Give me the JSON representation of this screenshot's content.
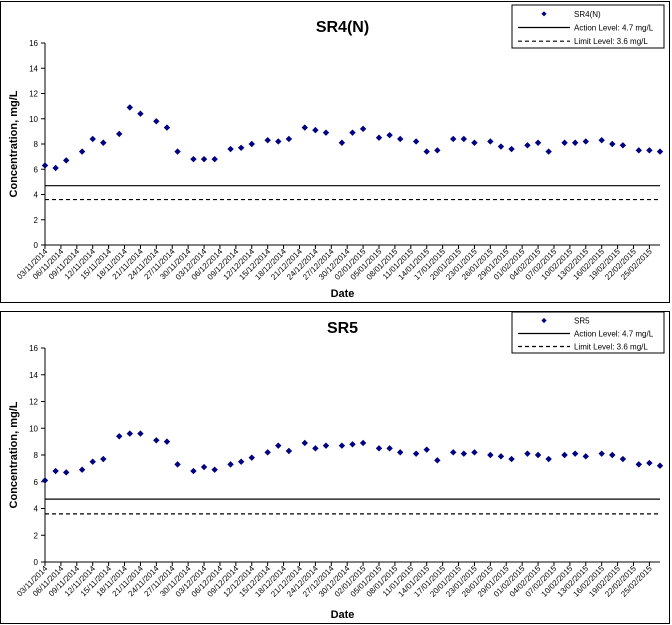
{
  "chart_data": [
    {
      "type": "scatter",
      "title": "SR4(N)",
      "xlabel": "Date",
      "ylabel": "Concentration, mg/L",
      "ylim": [
        0,
        16
      ],
      "yticks": [
        0,
        2,
        4,
        6,
        8,
        10,
        12,
        14,
        16
      ],
      "xlim": [
        "03/11/2014",
        "27/02/2015"
      ],
      "xticks": [
        "03/11/2014",
        "06/11/2014",
        "09/11/2014",
        "12/11/2014",
        "15/11/2014",
        "18/11/2014",
        "21/11/2014",
        "24/11/2014",
        "27/11/2014",
        "30/11/2014",
        "03/12/2014",
        "06/12/2014",
        "09/12/2014",
        "12/12/2014",
        "15/12/2014",
        "18/12/2014",
        "21/12/2014",
        "24/12/2014",
        "27/12/2014",
        "30/12/2014",
        "02/01/2015",
        "05/01/2015",
        "08/01/2015",
        "11/01/2015",
        "14/01/2015",
        "17/01/2015",
        "20/01/2015",
        "23/01/2015",
        "26/01/2015",
        "29/01/2015",
        "01/02/2015",
        "04/02/2015",
        "07/02/2015",
        "10/02/2015",
        "13/02/2015",
        "16/02/2015",
        "19/02/2015",
        "22/02/2015",
        "25/02/2015"
      ],
      "grid": false,
      "legend_position": "top-right",
      "series": [
        {
          "name": "SR4(N)",
          "kind": "points",
          "color": "#000080",
          "points": [
            {
              "x": "03/11/2014",
              "y": 6.3
            },
            {
              "x": "05/11/2014",
              "y": 6.1
            },
            {
              "x": "07/11/2014",
              "y": 6.7
            },
            {
              "x": "10/11/2014",
              "y": 7.4
            },
            {
              "x": "12/11/2014",
              "y": 8.4
            },
            {
              "x": "14/11/2014",
              "y": 8.1
            },
            {
              "x": "17/11/2014",
              "y": 8.8
            },
            {
              "x": "19/11/2014",
              "y": 10.9
            },
            {
              "x": "21/11/2014",
              "y": 10.4
            },
            {
              "x": "24/11/2014",
              "y": 9.8
            },
            {
              "x": "26/11/2014",
              "y": 9.3
            },
            {
              "x": "28/11/2014",
              "y": 7.4
            },
            {
              "x": "01/12/2014",
              "y": 6.8
            },
            {
              "x": "03/12/2014",
              "y": 6.8
            },
            {
              "x": "05/12/2014",
              "y": 6.8
            },
            {
              "x": "08/12/2014",
              "y": 7.6
            },
            {
              "x": "10/12/2014",
              "y": 7.7
            },
            {
              "x": "12/12/2014",
              "y": 8.0
            },
            {
              "x": "15/12/2014",
              "y": 8.3
            },
            {
              "x": "17/12/2014",
              "y": 8.2
            },
            {
              "x": "19/12/2014",
              "y": 8.4
            },
            {
              "x": "22/12/2014",
              "y": 9.3
            },
            {
              "x": "24/12/2014",
              "y": 9.1
            },
            {
              "x": "26/12/2014",
              "y": 8.9
            },
            {
              "x": "29/12/2014",
              "y": 8.1
            },
            {
              "x": "31/12/2014",
              "y": 8.9
            },
            {
              "x": "02/01/2015",
              "y": 9.2
            },
            {
              "x": "05/01/2015",
              "y": 8.5
            },
            {
              "x": "07/01/2015",
              "y": 8.7
            },
            {
              "x": "09/01/2015",
              "y": 8.4
            },
            {
              "x": "12/01/2015",
              "y": 8.2
            },
            {
              "x": "14/01/2015",
              "y": 7.4
            },
            {
              "x": "16/01/2015",
              "y": 7.5
            },
            {
              "x": "19/01/2015",
              "y": 8.4
            },
            {
              "x": "21/01/2015",
              "y": 8.4
            },
            {
              "x": "23/01/2015",
              "y": 8.1
            },
            {
              "x": "26/01/2015",
              "y": 8.2
            },
            {
              "x": "28/01/2015",
              "y": 7.8
            },
            {
              "x": "30/01/2015",
              "y": 7.6
            },
            {
              "x": "02/02/2015",
              "y": 7.9
            },
            {
              "x": "04/02/2015",
              "y": 8.1
            },
            {
              "x": "06/02/2015",
              "y": 7.4
            },
            {
              "x": "09/02/2015",
              "y": 8.1
            },
            {
              "x": "11/02/2015",
              "y": 8.1
            },
            {
              "x": "13/02/2015",
              "y": 8.2
            },
            {
              "x": "16/02/2015",
              "y": 8.3
            },
            {
              "x": "18/02/2015",
              "y": 8.0
            },
            {
              "x": "20/02/2015",
              "y": 7.9
            },
            {
              "x": "23/02/2015",
              "y": 7.5
            },
            {
              "x": "25/02/2015",
              "y": 7.5
            },
            {
              "x": "27/02/2015",
              "y": 7.4
            }
          ]
        },
        {
          "name": "Action Level: 4.7 mg/L",
          "kind": "hline",
          "y": 4.7,
          "dash": "solid",
          "color": "#000000"
        },
        {
          "name": "Limit Level: 3.6 mg/L",
          "kind": "hline",
          "y": 3.6,
          "dash": "dashed",
          "color": "#000000"
        }
      ]
    },
    {
      "type": "scatter",
      "title": "SR5",
      "xlabel": "Date",
      "ylabel": "Concentration, mg/L",
      "ylim": [
        0,
        16
      ],
      "yticks": [
        0,
        2,
        4,
        6,
        8,
        10,
        12,
        14,
        16
      ],
      "xlim": [
        "03/11/2014",
        "27/02/2015"
      ],
      "xticks": [
        "03/11/2014",
        "06/11/2014",
        "09/11/2014",
        "12/11/2014",
        "15/11/2014",
        "18/11/2014",
        "21/11/2014",
        "24/11/2014",
        "27/11/2014",
        "30/11/2014",
        "03/12/2014",
        "06/12/2014",
        "09/12/2014",
        "12/12/2014",
        "15/12/2014",
        "18/12/2014",
        "21/12/2014",
        "24/12/2014",
        "27/12/2014",
        "30/12/2014",
        "02/01/2015",
        "05/01/2015",
        "08/01/2015",
        "11/01/2015",
        "14/01/2015",
        "17/01/2015",
        "20/01/2015",
        "23/01/2015",
        "26/01/2015",
        "29/01/2015",
        "01/02/2015",
        "04/02/2015",
        "07/02/2015",
        "10/02/2015",
        "13/02/2015",
        "16/02/2015",
        "19/02/2015",
        "22/02/2015",
        "25/02/2015"
      ],
      "grid": false,
      "legend_position": "top-right",
      "series": [
        {
          "name": "SR5",
          "kind": "points",
          "color": "#000080",
          "points": [
            {
              "x": "03/11/2014",
              "y": 6.1
            },
            {
              "x": "05/11/2014",
              "y": 6.8
            },
            {
              "x": "07/11/2014",
              "y": 6.7
            },
            {
              "x": "10/11/2014",
              "y": 6.9
            },
            {
              "x": "12/11/2014",
              "y": 7.5
            },
            {
              "x": "14/11/2014",
              "y": 7.7
            },
            {
              "x": "17/11/2014",
              "y": 9.4
            },
            {
              "x": "19/11/2014",
              "y": 9.6
            },
            {
              "x": "21/11/2014",
              "y": 9.6
            },
            {
              "x": "24/11/2014",
              "y": 9.1
            },
            {
              "x": "26/11/2014",
              "y": 9.0
            },
            {
              "x": "28/11/2014",
              "y": 7.3
            },
            {
              "x": "01/12/2014",
              "y": 6.8
            },
            {
              "x": "03/12/2014",
              "y": 7.1
            },
            {
              "x": "05/12/2014",
              "y": 6.9
            },
            {
              "x": "08/12/2014",
              "y": 7.3
            },
            {
              "x": "10/12/2014",
              "y": 7.5
            },
            {
              "x": "12/12/2014",
              "y": 7.8
            },
            {
              "x": "15/12/2014",
              "y": 8.2
            },
            {
              "x": "17/12/2014",
              "y": 8.7
            },
            {
              "x": "19/12/2014",
              "y": 8.3
            },
            {
              "x": "22/12/2014",
              "y": 8.9
            },
            {
              "x": "24/12/2014",
              "y": 8.5
            },
            {
              "x": "26/12/2014",
              "y": 8.7
            },
            {
              "x": "29/12/2014",
              "y": 8.7
            },
            {
              "x": "31/12/2014",
              "y": 8.8
            },
            {
              "x": "02/01/2015",
              "y": 8.9
            },
            {
              "x": "05/01/2015",
              "y": 8.5
            },
            {
              "x": "07/01/2015",
              "y": 8.5
            },
            {
              "x": "09/01/2015",
              "y": 8.2
            },
            {
              "x": "12/01/2015",
              "y": 8.1
            },
            {
              "x": "14/01/2015",
              "y": 8.4
            },
            {
              "x": "16/01/2015",
              "y": 7.6
            },
            {
              "x": "19/01/2015",
              "y": 8.2
            },
            {
              "x": "21/01/2015",
              "y": 8.1
            },
            {
              "x": "23/01/2015",
              "y": 8.2
            },
            {
              "x": "26/01/2015",
              "y": 8.0
            },
            {
              "x": "28/01/2015",
              "y": 7.9
            },
            {
              "x": "30/01/2015",
              "y": 7.7
            },
            {
              "x": "02/02/2015",
              "y": 8.1
            },
            {
              "x": "04/02/2015",
              "y": 8.0
            },
            {
              "x": "06/02/2015",
              "y": 7.7
            },
            {
              "x": "09/02/2015",
              "y": 8.0
            },
            {
              "x": "11/02/2015",
              "y": 8.1
            },
            {
              "x": "13/02/2015",
              "y": 7.9
            },
            {
              "x": "16/02/2015",
              "y": 8.1
            },
            {
              "x": "18/02/2015",
              "y": 8.0
            },
            {
              "x": "20/02/2015",
              "y": 7.7
            },
            {
              "x": "23/02/2015",
              "y": 7.3
            },
            {
              "x": "25/02/2015",
              "y": 7.4
            },
            {
              "x": "27/02/2015",
              "y": 7.2
            }
          ]
        },
        {
          "name": "Action Level: 4.7 mg/L",
          "kind": "hline",
          "y": 4.7,
          "dash": "solid",
          "color": "#000000"
        },
        {
          "name": "Limit Level: 3.6 mg/L",
          "kind": "hline",
          "y": 3.6,
          "dash": "dashed",
          "color": "#000000"
        }
      ]
    }
  ]
}
